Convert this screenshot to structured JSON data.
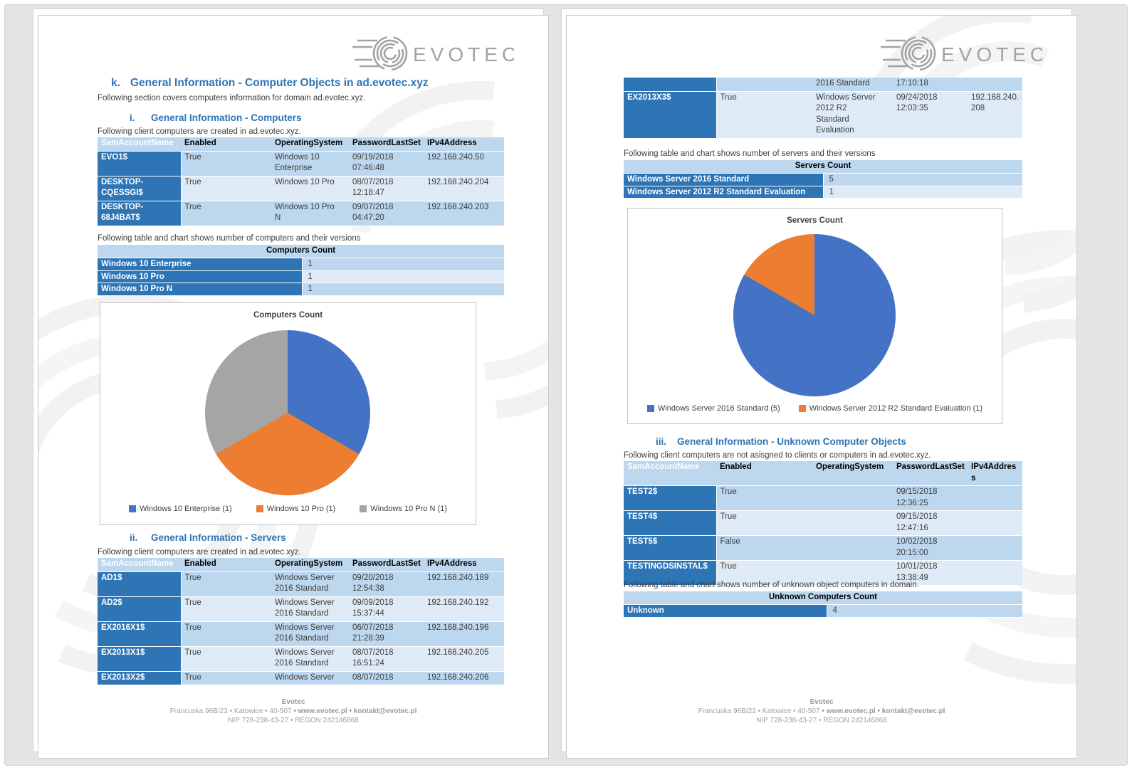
{
  "colors": {
    "heading_blue": "#2E74B5",
    "cell_dark_blue": "#2E75B6",
    "row_medium": "#BDD7EE",
    "row_light": "#DEEBF7",
    "pie_blue": "#4472C4",
    "pie_orange": "#ED7D31",
    "pie_gray": "#A5A5A5"
  },
  "logo": {
    "text": "EVOTEC"
  },
  "footer": {
    "name": "Evotec",
    "line2a": "Francuska 96B/23 • Katowice • 40-507",
    "line2b": " • www.evotec.pl • kontakt@evotec.pl",
    "line3": "NIP 728-238-43-27 • REGON 242146868"
  },
  "table_headers": [
    "SamAccountName",
    "Enabled",
    "OperatingSystem",
    "PasswordLastSet",
    "IPv4Address"
  ],
  "page1": {
    "heading": {
      "num": "k.",
      "text": "General Information - Computer Objects in ad.evotec.xyz"
    },
    "intro": "Following section covers computers information for domain ad.evotec.xyz.",
    "computers": {
      "heading": {
        "num": "i.",
        "text": "General Information - Computers"
      },
      "intro": "Following client computers are created in ad.evotec.xyz.",
      "rows": [
        [
          "EVO1$",
          "True",
          "Windows 10\nEnterprise",
          "09/19/2018\n07:46:48",
          "192.168.240.50"
        ],
        [
          "DESKTOP-\nCQESSGI$",
          "True",
          "Windows 10 Pro",
          "08/07/2018\n12:18:47",
          "192.168.240.204"
        ],
        [
          "DESKTOP-68J4BAT$",
          "True",
          "Windows 10 Pro\nN",
          "09/07/2018\n04:47:20",
          "192.168.240.203"
        ]
      ],
      "count_intro": "Following table and chart shows number of computers and their versions",
      "count_title": "Computers Count",
      "count_rows": [
        [
          "Windows 10 Enterprise",
          "1"
        ],
        [
          "Windows 10 Pro",
          "1"
        ],
        [
          "Windows 10 Pro N",
          "1"
        ]
      ]
    },
    "servers": {
      "heading": {
        "num": "ii.",
        "text": "General Information - Servers"
      },
      "intro": "Following client computers are created in ad.evotec.xyz.",
      "rows": [
        [
          "AD1$",
          "True",
          "Windows Server\n2016 Standard",
          "09/20/2018\n12:54:38",
          "192.168.240.189"
        ],
        [
          "AD2$",
          "True",
          "Windows Server\n2016 Standard",
          "09/09/2018\n15:37:44",
          "192.168.240.192"
        ],
        [
          "EX2016X1$",
          "True",
          "Windows Server\n2016 Standard",
          "06/07/2018\n21:28:39",
          "192.168.240.196"
        ],
        [
          "EX2013X1$",
          "True",
          "Windows Server\n2016 Standard",
          "08/07/2018\n16:51:24",
          "192.168.240.205"
        ],
        [
          "EX2013X2$",
          "True",
          "Windows Server",
          "08/07/2018",
          "192.168.240.206"
        ]
      ]
    }
  },
  "page2": {
    "servers_cont_rows": [
      [
        "",
        "",
        "2016 Standard",
        "17:10:18",
        ""
      ],
      [
        "EX2013X3$",
        "True",
        "Windows Server\n2012 R2\nStandard\nEvaluation",
        "09/24/2018\n12:03:35",
        "192.168.240.208"
      ]
    ],
    "servers_count_intro": "Following table and chart shows number of servers and their versions",
    "servers_count_title": "Servers Count",
    "servers_count_rows": [
      [
        "Windows Server 2016 Standard",
        "5"
      ],
      [
        "Windows Server 2012 R2 Standard Evaluation",
        "1"
      ]
    ],
    "unknown": {
      "heading": {
        "num": "iii.",
        "text": "General Information - Unknown Computer Objects"
      },
      "intro": "Following client computers are not asisgned to clients or computers in ad.evotec.xyz.",
      "rows": [
        [
          "TEST2$",
          "True",
          "",
          "09/15/2018\n12:36:25",
          ""
        ],
        [
          "TEST4$",
          "True",
          "",
          "09/15/2018\n12:47:16",
          ""
        ],
        [
          "TEST5$",
          "False",
          "",
          "10/02/2018\n20:15:00",
          ""
        ],
        [
          "TESTINGDSINSTAL$",
          "True",
          "",
          "10/01/2018\n13:38:49",
          ""
        ]
      ],
      "count_intro": "Following table and chart shows number of unknown object computers in domain.",
      "count_title": "Unknown Computers Count",
      "count_rows": [
        [
          "Unknown",
          "4"
        ]
      ]
    }
  },
  "chart_data": [
    {
      "type": "pie",
      "title": "Computers Count",
      "labels": [
        "Windows 10 Enterprise",
        "Windows 10 Pro",
        "Windows 10 Pro N"
      ],
      "values": [
        1,
        1,
        1
      ],
      "colors": [
        "#4472C4",
        "#ED7D31",
        "#A5A5A5"
      ],
      "legend": [
        "Windows 10 Enterprise (1)",
        "Windows 10 Pro (1)",
        "Windows 10 Pro N (1)"
      ],
      "legend_position": "bottom"
    },
    {
      "type": "pie",
      "title": "Servers Count",
      "labels": [
        "Windows Server 2016 Standard",
        "Windows Server 2012 R2 Standard Evaluation"
      ],
      "values": [
        5,
        1
      ],
      "colors": [
        "#4472C4",
        "#ED7D31"
      ],
      "legend": [
        "Windows Server 2016 Standard (5)",
        "Windows Server 2012 R2 Standard Evaluation (1)"
      ],
      "legend_position": "bottom"
    }
  ]
}
